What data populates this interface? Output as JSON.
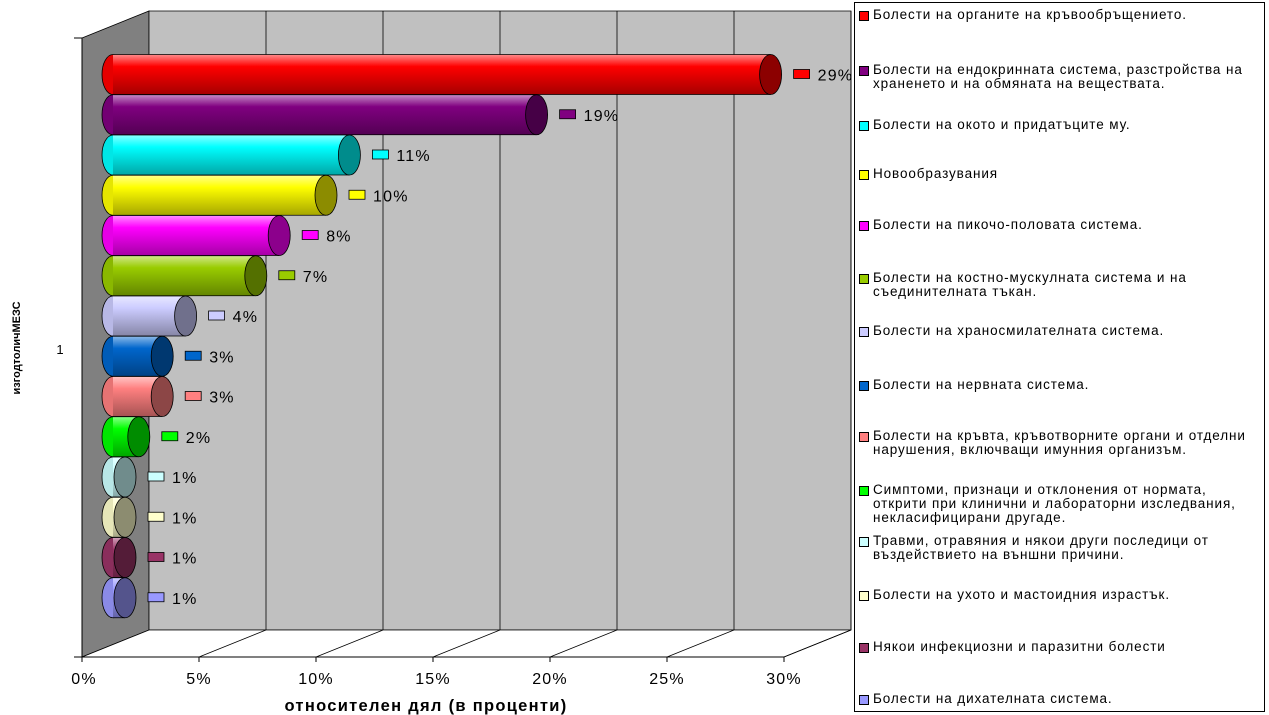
{
  "chart_data": {
    "type": "bar",
    "orientation": "horizontal",
    "style": "3d-cylinder",
    "ylabel": "изгодтоличМЕЗС",
    "xlabel": "относителен дял (в проценти)",
    "category_tick": "1",
    "x_ticks": [
      "0%",
      "5%",
      "10%",
      "15%",
      "20%",
      "25%",
      "30%"
    ],
    "xlim": [
      0,
      30
    ],
    "grid": true,
    "legend_position": "right",
    "series": [
      {
        "name": "Болести на органите на кръвообръщението.",
        "value": 29,
        "label": "29%",
        "color": "#ff0000"
      },
      {
        "name": "Болести на ендокринната система, разстройства на храненето и на обмяната на веществата.",
        "value": 19,
        "label": "19%",
        "color": "#800080"
      },
      {
        "name": "Болести на окото и придатъците му.",
        "value": 11,
        "label": "11%",
        "color": "#00ffff"
      },
      {
        "name": "Новообразувания",
        "value": 10,
        "label": "10%",
        "color": "#ffff00"
      },
      {
        "name": "Болести на пикочо-половата система.",
        "value": 8,
        "label": "8%",
        "color": "#ff00ff"
      },
      {
        "name": "Болести на костно-мускулната система и на съединителната тъкан.",
        "value": 7,
        "label": "7%",
        "color": "#99cc00"
      },
      {
        "name": "Болести на храносмилателната система.",
        "value": 4,
        "label": "4%",
        "color": "#ccccff"
      },
      {
        "name": "Болести на нервната система.",
        "value": 3,
        "label": "3%",
        "color": "#0066cc"
      },
      {
        "name": "Болести на кръвта, кръвотворните органи и отделни нарушения, включващи имунния организъм.",
        "value": 3,
        "label": "3%",
        "color": "#ff8080"
      },
      {
        "name": "Симптоми, признаци и отклонения от нормата, открити при клинични и лабораторни изследвания, некласифицирани другаде.",
        "value": 2,
        "label": "2%",
        "color": "#00ff00"
      },
      {
        "name": "Травми, отравяния и някои други последици от въздействието на външни причини.",
        "value": 1,
        "label": "1%",
        "color": "#ccffff"
      },
      {
        "name": "Болести на ухото и мастоидния израстък.",
        "value": 1,
        "label": "1%",
        "color": "#ffffcc"
      },
      {
        "name": "Някои инфекциозни и паразитни болести",
        "value": 1,
        "label": "1%",
        "color": "#993366"
      },
      {
        "name": "Болести на дихателната система.",
        "value": 1,
        "label": "1%",
        "color": "#9999ff"
      }
    ]
  }
}
